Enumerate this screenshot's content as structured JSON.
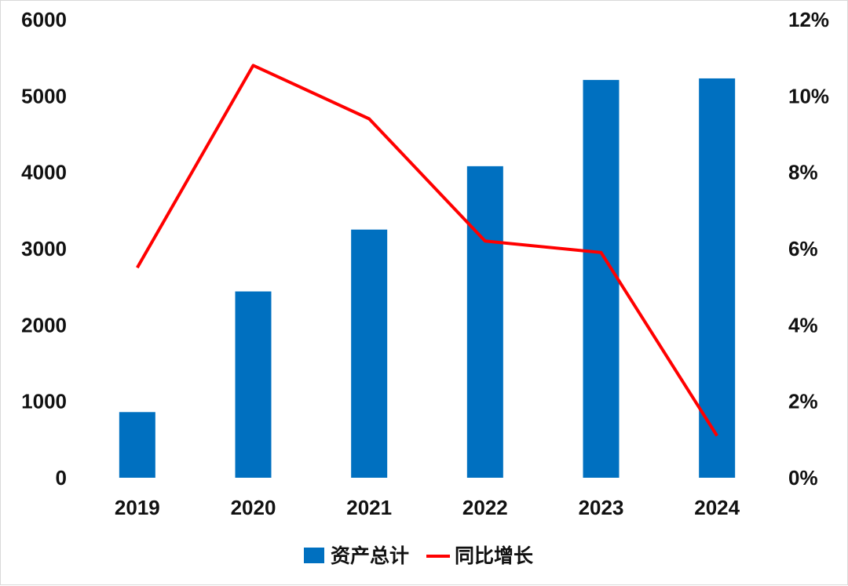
{
  "chart_data": {
    "type": "bar",
    "categories": [
      "2019",
      "2020",
      "2021",
      "2022",
      "2023",
      "2024"
    ],
    "series": [
      {
        "name": "资产总计",
        "type": "bar",
        "axis": "left",
        "color": "#0070c0",
        "values": [
          860,
          2440,
          3250,
          4080,
          5210,
          5230
        ]
      },
      {
        "name": "同比增长",
        "type": "line",
        "axis": "right",
        "color": "#ff0000",
        "values": [
          5.5,
          10.8,
          9.4,
          6.2,
          5.9,
          1.1
        ]
      }
    ],
    "left_axis": {
      "min": 0,
      "max": 6000,
      "ticks": [
        "0",
        "1000",
        "2000",
        "3000",
        "4000",
        "5000",
        "6000"
      ]
    },
    "right_axis": {
      "min": 0,
      "max": 12,
      "unit": "%",
      "ticks": [
        "0%",
        "2%",
        "4%",
        "6%",
        "8%",
        "10%",
        "12%"
      ]
    },
    "grid": false,
    "legend_position": "bottom"
  },
  "legend": {
    "bar_label": "资产总计",
    "line_label": "同比增长"
  }
}
